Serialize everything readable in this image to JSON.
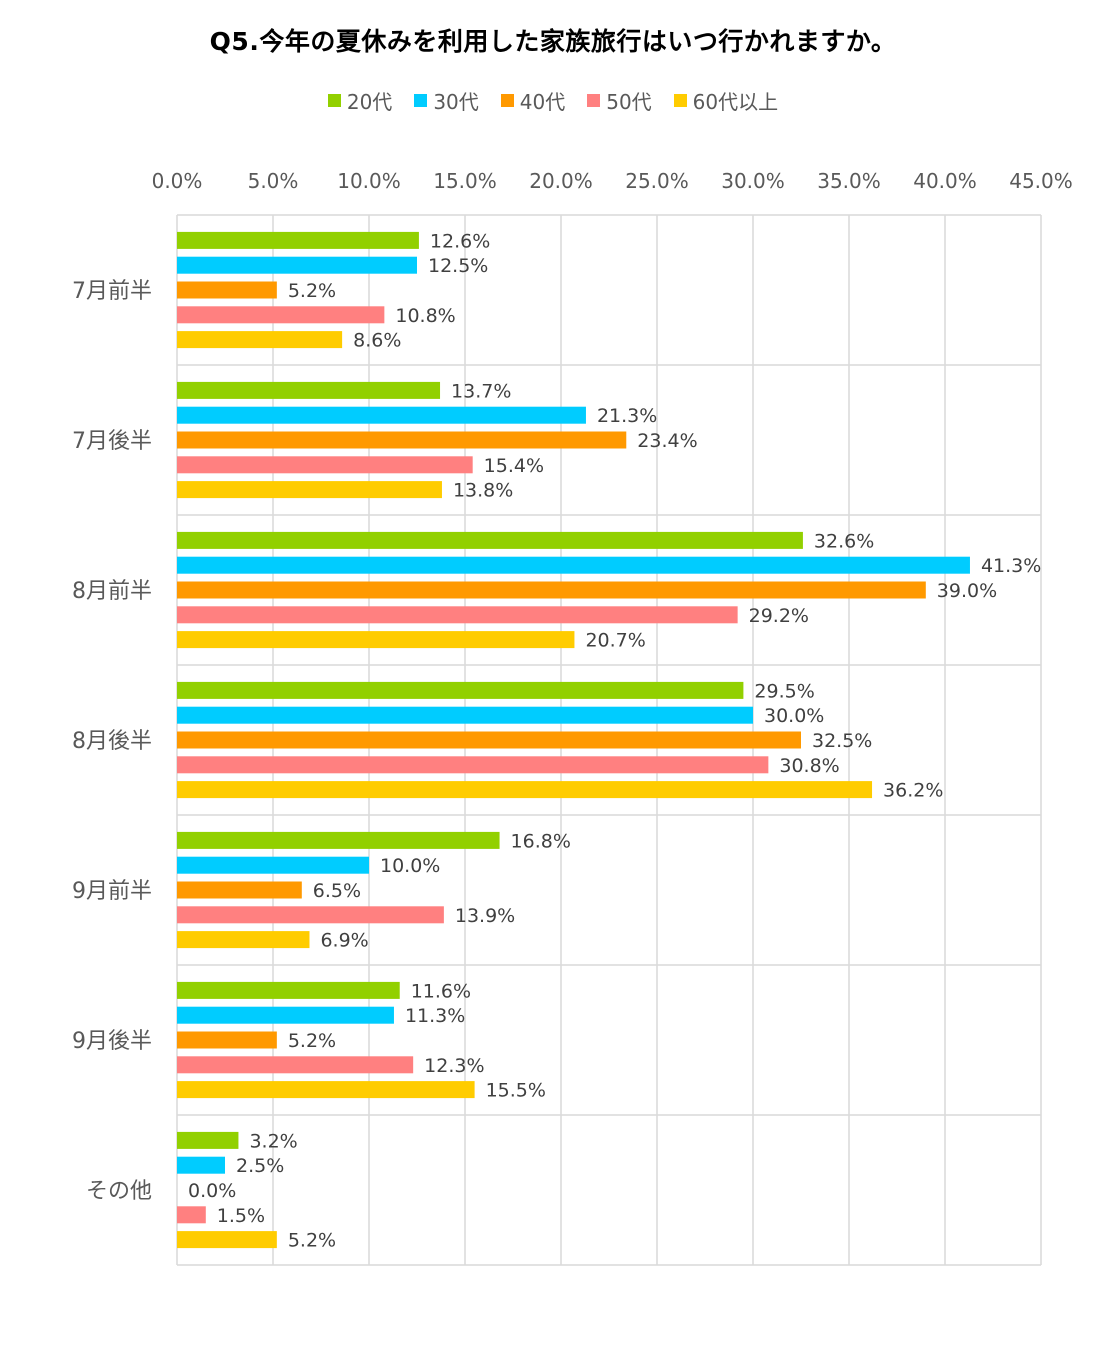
{
  "chart_data": {
    "type": "bar",
    "orientation": "horizontal",
    "title": "Q5.今年の夏休みを利用した家族旅行はいつ行かれますか。",
    "categories": [
      "7月前半",
      "7月後半",
      "8月前半",
      "8月後半",
      "9月前半",
      "9月後半",
      "その他"
    ],
    "series": [
      {
        "name": "20代",
        "color": "#92D000",
        "values": [
          12.6,
          13.7,
          32.6,
          29.5,
          16.8,
          11.6,
          3.2
        ]
      },
      {
        "name": "30代",
        "color": "#00CCFF",
        "values": [
          12.5,
          21.3,
          41.3,
          30.0,
          10.0,
          11.3,
          2.5
        ]
      },
      {
        "name": "40代",
        "color": "#FF9900",
        "values": [
          5.2,
          23.4,
          39.0,
          32.5,
          6.5,
          5.2,
          0.0
        ]
      },
      {
        "name": "50代",
        "color": "#FF8080",
        "values": [
          10.8,
          15.4,
          29.2,
          30.8,
          13.9,
          12.3,
          1.5
        ]
      },
      {
        "name": "60代以上",
        "color": "#FFCC00",
        "values": [
          8.6,
          13.8,
          20.7,
          36.2,
          6.9,
          15.5,
          5.2
        ]
      }
    ],
    "xlim": [
      0,
      45
    ],
    "xticks": [
      0,
      5,
      10,
      15,
      20,
      25,
      30,
      35,
      40,
      45
    ],
    "xtick_labels": [
      "0.0%",
      "5.0%",
      "10.0%",
      "15.0%",
      "20.0%",
      "25.0%",
      "30.0%",
      "35.0%",
      "40.0%",
      "45.0%"
    ],
    "value_format": "percent-1-decimal",
    "xaxis_position": "top",
    "legend_position": "top-center",
    "grid": true
  }
}
